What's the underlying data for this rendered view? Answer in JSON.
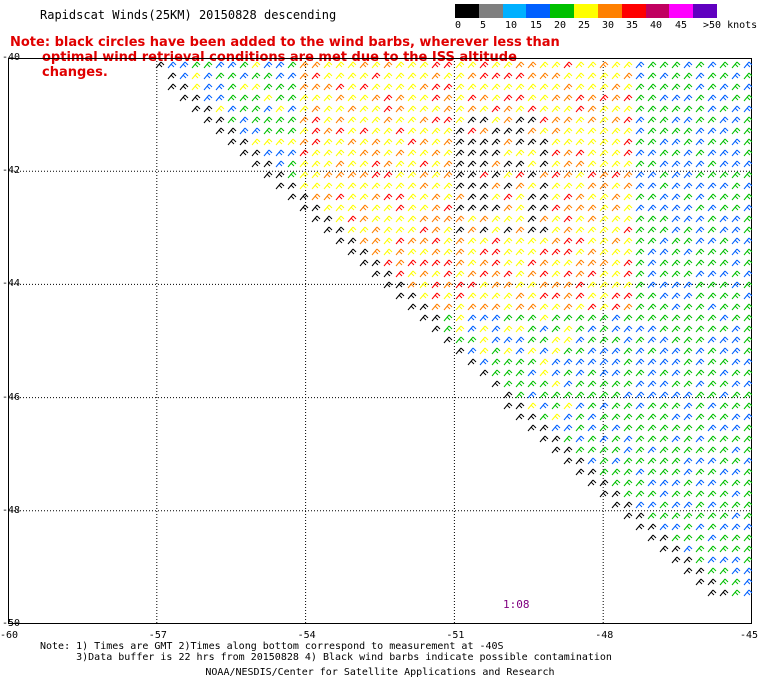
{
  "header": {
    "title": "Rapidscat Winds(25KM) 20150828 descending",
    "note_line1": "Note: black circles have been added to the wind barbs, wherever less than",
    "note_line2": "optimal wind retrieval conditions are met due to the ISS altitude changes."
  },
  "colorbar": {
    "labels": [
      "0",
      "5",
      "10",
      "15",
      "20",
      "25",
      "30",
      "35",
      "40",
      "45",
      ">50 knots"
    ],
    "colors": [
      "#000000",
      "#7f7f7f",
      "#00b0ff",
      "#0060ff",
      "#00c000",
      "#ffff00",
      "#ff8000",
      "#ff0000",
      "#c00060",
      "#ff00ff",
      "#6000c0"
    ]
  },
  "axes": {
    "lat_labels": [
      "-40",
      "-42",
      "-44",
      "-46",
      "-48",
      "-50"
    ],
    "lon_labels": [
      "-60",
      "-57",
      "-54",
      "-51",
      "-48",
      "-45"
    ]
  },
  "time_label": "1:08",
  "footer": {
    "line1": "Note: 1) Times are GMT 2)Times along bottom correspond to measurement at -40S",
    "line2": "      3)Data buffer is 22 hrs from 20150828 4) Black wind barbs indicate possible contamination",
    "credit": "NOAA/NESDIS/Center for Satellite Applications and Research"
  }
}
